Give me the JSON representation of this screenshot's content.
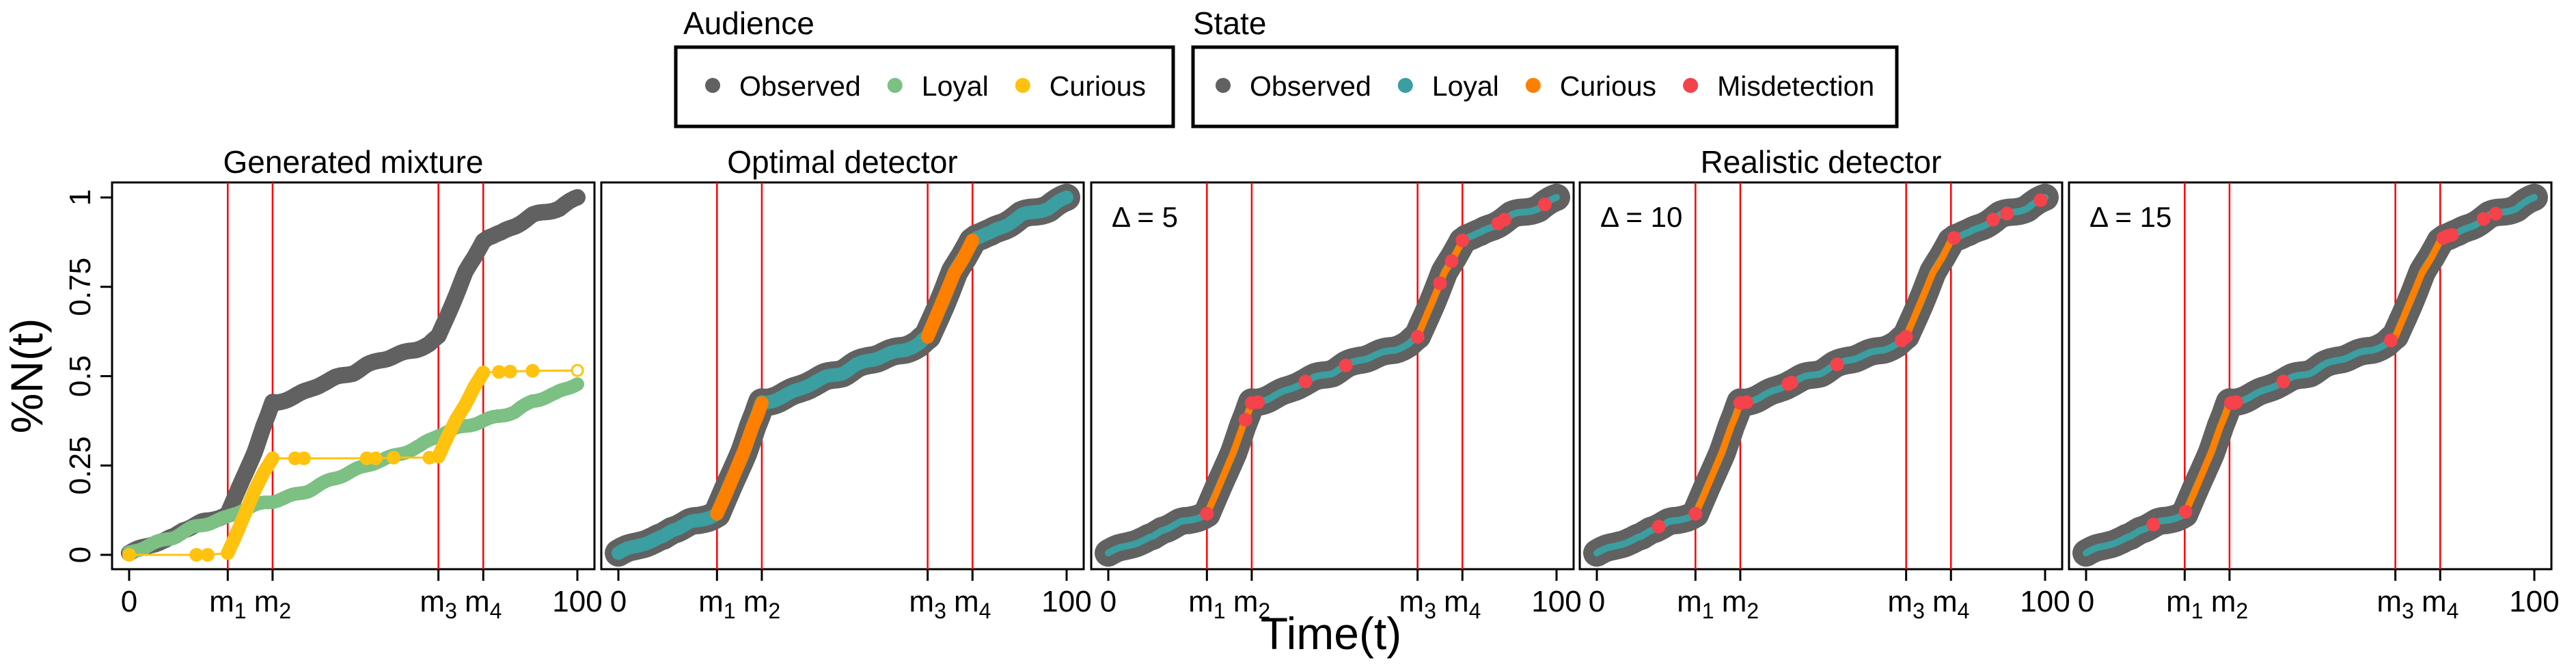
{
  "colors": {
    "observed": "#616161",
    "audience_loyal": "#7cc084",
    "audience_curious": "#ffc20e",
    "state_loyal": "#3b9ea0",
    "state_curious": "#ff7f00",
    "misdetection": "#f5424b",
    "marker_lines": "#ff0000"
  },
  "legends": [
    {
      "title": "Audience",
      "items": [
        {
          "label": "Observed",
          "color_key": "observed"
        },
        {
          "label": "Loyal",
          "color_key": "audience_loyal"
        },
        {
          "label": "Curious",
          "color_key": "audience_curious"
        }
      ]
    },
    {
      "title": "State",
      "items": [
        {
          "label": "Observed",
          "color_key": "observed"
        },
        {
          "label": "Loyal",
          "color_key": "state_loyal"
        },
        {
          "label": "Curious",
          "color_key": "state_curious"
        },
        {
          "label": "Misdetection",
          "color_key": "misdetection"
        }
      ]
    }
  ],
  "chart_data": {
    "type": "line",
    "ylabel": "%N(t)",
    "xlabel": "Time(t)",
    "xlim": [
      0,
      100
    ],
    "ylim": [
      0,
      1
    ],
    "yticks": [
      "0",
      "0.25",
      "0.5",
      "0.75",
      "1"
    ],
    "ytick_values": [
      0,
      0.25,
      0.5,
      0.75,
      1
    ],
    "xtick_end_labels": [
      "0",
      "100"
    ],
    "change_points": [
      {
        "label": "m",
        "sub": "1",
        "t": 22
      },
      {
        "label": "m",
        "sub": "2",
        "t": 32
      },
      {
        "label": "m",
        "sub": "3",
        "t": 69
      },
      {
        "label": "m",
        "sub": "4",
        "t": 79
      }
    ],
    "group_titles": [
      {
        "text": "Generated mixture",
        "panels": [
          0
        ]
      },
      {
        "text": "Optimal detector",
        "panels": [
          1
        ]
      },
      {
        "text": "Realistic detector",
        "panels": [
          2,
          3,
          4
        ]
      }
    ],
    "observed": {
      "t": [
        0,
        2,
        5,
        8,
        10,
        12,
        14,
        16,
        18,
        20,
        22,
        24,
        26,
        28,
        30,
        31,
        32,
        33,
        35,
        38,
        40,
        43,
        46,
        50,
        53,
        56,
        60,
        64,
        67,
        69,
        71,
        73,
        75,
        77,
        79,
        80,
        83,
        86,
        88,
        90,
        93,
        96,
        98,
        100
      ],
      "v": [
        0.005,
        0.015,
        0.03,
        0.04,
        0.05,
        0.07,
        0.08,
        0.09,
        0.095,
        0.105,
        0.115,
        0.17,
        0.23,
        0.29,
        0.36,
        0.39,
        0.425,
        0.425,
        0.435,
        0.45,
        0.46,
        0.48,
        0.495,
        0.51,
        0.53,
        0.545,
        0.56,
        0.575,
        0.59,
        0.61,
        0.67,
        0.73,
        0.79,
        0.83,
        0.88,
        0.89,
        0.9,
        0.92,
        0.935,
        0.95,
        0.96,
        0.97,
        0.985,
        1.0
      ]
    },
    "panels": [
      {
        "name": "Generated mixture",
        "series": [
          {
            "name": "Observed",
            "color_key": "observed",
            "source": "observed"
          },
          {
            "name": "Loyal",
            "color_key": "audience_loyal",
            "t": [
              0,
              5,
              10,
              14,
              18,
              22,
              26,
              30,
              32,
              35,
              40,
              45,
              50,
              55,
              60,
              65,
              69,
              72,
              75,
              79,
              83,
              86,
              90,
              95,
              100
            ],
            "v": [
              0.005,
              0.03,
              0.05,
              0.075,
              0.09,
              0.105,
              0.13,
              0.145,
              0.15,
              0.16,
              0.18,
              0.21,
              0.235,
              0.26,
              0.28,
              0.305,
              0.335,
              0.35,
              0.36,
              0.375,
              0.39,
              0.4,
              0.43,
              0.45,
              0.48
            ]
          },
          {
            "name": "Curious",
            "color_key": "audience_curious",
            "t": [
              0,
              15,
              17.5,
              22,
              24,
              26,
              28,
              30,
              32,
              37,
              39,
              53,
              55,
              59,
              67,
              69,
              71,
              73,
              75,
              77,
              79,
              82.5,
              85,
              90,
              100
            ],
            "v": [
              0,
              0,
              0,
              0.005,
              0.06,
              0.12,
              0.18,
              0.23,
              0.27,
              0.27,
              0.27,
              0.27,
              0.27,
              0.272,
              0.272,
              0.275,
              0.33,
              0.38,
              0.42,
              0.47,
              0.51,
              0.512,
              0.513,
              0.515,
              0.516
            ],
            "last_point_open": true
          }
        ]
      },
      {
        "name": "Optimal detector",
        "delta": null,
        "curious_intervals": [
          [
            22,
            32
          ],
          [
            69,
            79
          ]
        ],
        "misdetections_t": []
      },
      {
        "name": "Realistic detector",
        "delta": "Δ = 5",
        "curious_intervals": [
          [
            22,
            32
          ],
          [
            69,
            79
          ]
        ],
        "misdetections_t": [
          22,
          30.6,
          32,
          33.4,
          44,
          53,
          69,
          74,
          76.6,
          79,
          87,
          88.4,
          97.4
        ]
      },
      {
        "name": "Realistic detector",
        "delta": "Δ = 10",
        "curious_intervals": [
          [
            22,
            32
          ],
          [
            69,
            79
          ]
        ],
        "misdetections_t": [
          13.8,
          22,
          32,
          33.4,
          42.7,
          43.4,
          53.6,
          68,
          69,
          79.7,
          88.4,
          91.5,
          99
        ]
      },
      {
        "name": "Realistic detector",
        "delta": "Δ = 15",
        "curious_intervals": [
          [
            22,
            32
          ],
          [
            69,
            80
          ]
        ],
        "misdetections_t": [
          15,
          22.2,
          32.3,
          33,
          33.5,
          44,
          68,
          79.7,
          80.6,
          81.6,
          88.7,
          91.4
        ]
      }
    ]
  }
}
